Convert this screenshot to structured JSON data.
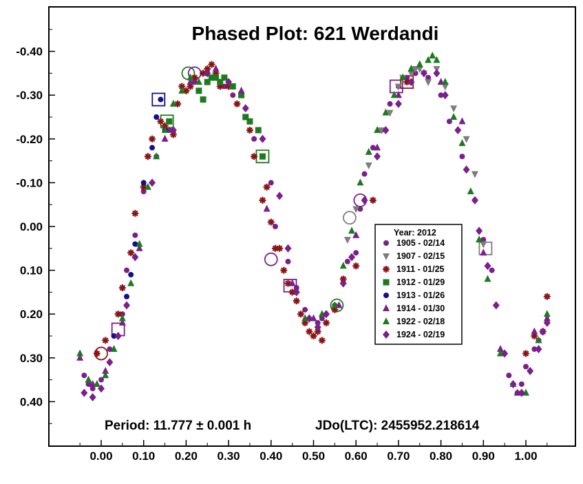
{
  "chart_data": {
    "type": "scatter",
    "title": "Phased Plot: 621 Werdandi",
    "xlabel": "",
    "ylabel": "",
    "xlim": [
      -0.12,
      1.12
    ],
    "ylim": [
      0.5,
      -0.48
    ],
    "y_inverted": true,
    "x_ticks": [
      "0.00",
      "0.10",
      "0.20",
      "0.30",
      "0.40",
      "0.50",
      "0.60",
      "0.70",
      "0.80",
      "0.90",
      "1.00"
    ],
    "y_ticks": [
      "-0.40",
      "-0.30",
      "-0.20",
      "-0.10",
      "0.00",
      "0.10",
      "0.20",
      "0.30",
      "0.40"
    ],
    "grid": false,
    "legend_position": "center-right",
    "legend_title": "Year: 2012",
    "period_text": "Period: 11.777 ± 0.001 h",
    "jdo_text": "JDo(LTC): 2455952.218614",
    "series": [
      {
        "name": "1905 - 02/14",
        "marker": "circle",
        "color": "#7a1f8c",
        "x": [
          -0.04,
          -0.03,
          -0.02,
          0.0,
          0.02,
          0.05,
          0.06,
          0.08,
          0.1,
          0.13,
          0.16,
          0.22,
          0.29,
          0.31,
          0.35,
          0.36,
          0.4,
          0.41,
          0.44,
          0.46,
          0.48,
          0.51,
          0.52,
          0.55,
          0.58,
          0.6,
          0.61,
          0.62,
          0.64,
          0.66,
          0.68,
          0.7,
          0.72,
          0.74,
          0.77,
          0.8,
          0.82,
          0.85,
          0.88,
          0.9,
          0.92,
          0.96,
          0.98,
          0.99,
          1.0,
          1.02,
          1.03
        ],
        "y": [
          0.34,
          0.36,
          0.37,
          0.35,
          0.28,
          0.2,
          0.1,
          0.02,
          -0.08,
          -0.16,
          -0.22,
          -0.33,
          -0.32,
          -0.3,
          -0.24,
          -0.2,
          -0.1,
          0.0,
          0.08,
          0.14,
          0.19,
          0.22,
          0.21,
          0.18,
          0.08,
          0.06,
          -0.04,
          -0.12,
          -0.18,
          -0.22,
          -0.28,
          -0.32,
          -0.34,
          -0.35,
          -0.34,
          -0.3,
          -0.24,
          -0.16,
          -0.06,
          0.03,
          0.1,
          0.34,
          0.38,
          0.36,
          0.32,
          0.28,
          0.26
        ]
      },
      {
        "name": "1907 - 02/15",
        "marker": "triangle-down",
        "color": "#7d7d7d",
        "x": [
          0.58,
          0.6,
          0.63,
          0.66,
          0.68,
          0.7,
          0.71,
          0.73,
          0.74,
          0.75,
          0.76,
          0.77,
          0.79,
          0.81,
          0.83,
          0.86,
          0.88,
          0.9
        ],
        "y": [
          0.03,
          -0.04,
          -0.14,
          -0.22,
          -0.26,
          -0.32,
          -0.34,
          -0.35,
          -0.36,
          -0.36,
          -0.35,
          -0.33,
          -0.36,
          -0.32,
          -0.27,
          -0.2,
          -0.12,
          0.04
        ]
      },
      {
        "name": "1911 - 01/25",
        "marker": "asterisk",
        "color": "#8b1515",
        "x": [
          -0.01,
          0.01,
          0.04,
          0.05,
          0.07,
          0.08,
          0.1,
          0.11,
          0.12,
          0.14,
          0.15,
          0.17,
          0.18,
          0.19,
          0.2,
          0.21,
          0.22,
          0.24,
          0.25,
          0.26,
          0.27,
          0.28,
          0.3,
          0.32,
          0.35,
          0.36,
          0.38,
          0.39,
          0.4,
          0.41,
          0.42,
          0.43,
          0.44,
          0.45,
          0.46,
          0.47,
          0.48,
          0.49,
          0.5,
          0.51,
          0.52,
          0.53,
          0.55,
          0.57,
          0.6,
          0.64,
          0.72,
          1.0,
          1.02,
          1.04,
          1.05
        ],
        "y": [
          0.29,
          0.26,
          0.2,
          0.14,
          0.06,
          -0.03,
          -0.09,
          -0.16,
          -0.2,
          -0.24,
          -0.23,
          -0.21,
          -0.28,
          -0.32,
          -0.31,
          -0.32,
          -0.34,
          -0.35,
          -0.36,
          -0.37,
          -0.35,
          -0.32,
          -0.32,
          -0.28,
          -0.22,
          -0.16,
          -0.06,
          -0.09,
          -0.01,
          0.05,
          0.05,
          0.1,
          0.13,
          0.15,
          0.17,
          0.2,
          0.22,
          0.24,
          0.25,
          0.24,
          0.26,
          0.22,
          0.19,
          0.12,
          0.09,
          -0.06,
          -0.33,
          0.29,
          0.25,
          0.24,
          0.16
        ]
      },
      {
        "name": "1912 - 01/29",
        "marker": "square",
        "color": "#1e7a1e",
        "x": [
          0.16,
          0.23,
          0.24,
          0.25,
          0.26,
          0.27,
          0.28,
          0.29,
          0.31,
          0.33,
          0.34,
          0.35,
          0.37,
          0.38
        ],
        "y": [
          -0.24,
          -0.31,
          -0.29,
          -0.33,
          -0.34,
          -0.34,
          -0.33,
          -0.34,
          -0.32,
          -0.3,
          -0.25,
          -0.24,
          -0.22,
          -0.16
        ]
      },
      {
        "name": "1913 - 01/26",
        "marker": "circle",
        "color": "#121285",
        "x": [
          0.03,
          0.06,
          0.07,
          0.08,
          0.1,
          0.12,
          0.13,
          0.14,
          0.15
        ],
        "y": [
          0.25,
          0.16,
          0.11,
          0.04,
          -0.1,
          -0.18,
          -0.25,
          -0.29,
          -0.22
        ]
      },
      {
        "name": "1914 - 01/30",
        "marker": "triangle-up",
        "color": "#7a1f8c",
        "x": [
          -0.05,
          -0.02,
          0.01,
          0.05,
          0.09,
          0.15,
          0.21,
          0.27,
          0.33,
          0.39,
          0.45,
          0.5,
          0.56,
          0.6,
          0.65,
          0.7,
          0.75,
          0.8,
          0.85,
          0.9,
          0.94,
          0.98,
          1.02,
          1.05
        ],
        "y": [
          0.3,
          0.36,
          0.33,
          0.22,
          0.05,
          -0.2,
          -0.33,
          -0.36,
          -0.31,
          -0.04,
          0.13,
          0.21,
          0.18,
          0.02,
          -0.18,
          -0.3,
          -0.37,
          -0.33,
          -0.24,
          0.06,
          0.28,
          0.38,
          0.24,
          0.21
        ]
      },
      {
        "name": "1922 - 02/18",
        "marker": "triangle-up",
        "color": "#1e7a1e",
        "x": [
          -0.05,
          -0.03,
          -0.01,
          0.01,
          0.03,
          0.05,
          0.07,
          0.09,
          0.11,
          0.13,
          0.15,
          0.17,
          0.19,
          0.21,
          0.23,
          0.25,
          0.27,
          0.48,
          0.52,
          0.55,
          0.57,
          0.59,
          0.61,
          0.63,
          0.65,
          0.67,
          0.69,
          0.71,
          0.73,
          0.75,
          0.77,
          0.78,
          0.79,
          0.81,
          0.83,
          0.85,
          0.87,
          0.89,
          0.91,
          0.94,
          0.97,
          1.0,
          1.03,
          1.05
        ],
        "y": [
          0.29,
          0.35,
          0.36,
          0.34,
          0.28,
          0.21,
          0.13,
          0.04,
          -0.09,
          -0.16,
          -0.22,
          -0.28,
          -0.31,
          -0.34,
          -0.33,
          -0.35,
          -0.34,
          0.21,
          0.2,
          0.18,
          0.09,
          0.01,
          -0.1,
          -0.17,
          -0.22,
          -0.26,
          -0.3,
          -0.34,
          -0.36,
          -0.37,
          -0.38,
          -0.39,
          -0.38,
          -0.33,
          -0.25,
          -0.19,
          -0.08,
          0.03,
          0.12,
          0.29,
          0.36,
          0.38,
          0.26,
          0.2
        ]
      },
      {
        "name": "1924 - 02/19",
        "marker": "diamond",
        "color": "#7a1f8c",
        "x": [
          -0.04,
          -0.02,
          0.0,
          0.02,
          0.04,
          0.06,
          0.08,
          0.12,
          0.17,
          0.25,
          0.3,
          0.34,
          0.38,
          0.42,
          0.44,
          0.46,
          0.49,
          0.51,
          0.53,
          0.57,
          0.59,
          0.62,
          0.65,
          0.67,
          0.7,
          0.73,
          0.76,
          0.79,
          0.81,
          0.84,
          0.86,
          0.88,
          0.89,
          0.91,
          0.93,
          0.95,
          0.97,
          0.99,
          1.01,
          1.03,
          1.04,
          1.05
        ],
        "y": [
          0.38,
          0.39,
          0.37,
          0.31,
          0.25,
          0.18,
          0.07,
          -0.1,
          -0.22,
          -0.35,
          -0.33,
          -0.27,
          -0.2,
          -0.07,
          0.05,
          0.15,
          0.21,
          0.23,
          0.2,
          0.13,
          0.07,
          -0.06,
          -0.16,
          -0.22,
          -0.28,
          -0.33,
          -0.35,
          -0.35,
          -0.3,
          -0.22,
          -0.13,
          -0.06,
          0.01,
          0.09,
          0.18,
          0.29,
          0.36,
          0.38,
          0.33,
          0.28,
          0.24,
          0.22
        ]
      }
    ],
    "highlighted_points": [
      {
        "series": "1905 - 02/14",
        "x": 0.0,
        "y": 0.29,
        "ring": "circle",
        "color": "#8b1515"
      },
      {
        "series": "1905 - 02/14",
        "x": 0.04,
        "y": 0.235,
        "ring": "square",
        "color": "#7a1f8c"
      },
      {
        "series": "1913 - 01/26",
        "x": 0.135,
        "y": -0.29,
        "ring": "square",
        "color": "#121285"
      },
      {
        "series": "1912 - 01/29",
        "x": 0.155,
        "y": -0.24,
        "ring": "square",
        "color": "#1e7a1e"
      },
      {
        "series": "1922 - 02/18",
        "x": 0.205,
        "y": -0.35,
        "ring": "circle",
        "color": "#1e7a1e"
      },
      {
        "series": "1914 - 01/30",
        "x": 0.22,
        "y": -0.35,
        "ring": "circle",
        "color": "#7a1f8c"
      },
      {
        "series": "1912 - 01/29",
        "x": 0.38,
        "y": -0.16,
        "ring": "square",
        "color": "#1e7a1e"
      },
      {
        "series": "1905 - 02/14",
        "x": 0.4,
        "y": 0.075,
        "ring": "circle",
        "color": "#7a1f8c"
      },
      {
        "series": "1914 - 01/30",
        "x": 0.445,
        "y": 0.135,
        "ring": "square",
        "color": "#7a1f8c"
      },
      {
        "series": "1922 - 02/18",
        "x": 0.555,
        "y": 0.18,
        "ring": "circle",
        "color": "#1e7a1e"
      },
      {
        "series": "1907 - 02/15",
        "x": 0.585,
        "y": -0.02,
        "ring": "circle",
        "color": "#7d7d7d"
      },
      {
        "series": "1905 - 02/14",
        "x": 0.61,
        "y": -0.06,
        "ring": "circle",
        "color": "#7a1f8c"
      },
      {
        "series": "1924 - 02/19",
        "x": 0.695,
        "y": -0.32,
        "ring": "square",
        "color": "#7a1f8c"
      },
      {
        "series": "1911 - 01/25",
        "x": 0.72,
        "y": -0.33,
        "ring": "square",
        "color": "#8b1515"
      },
      {
        "series": "1907 - 02/15",
        "x": 0.905,
        "y": 0.05,
        "ring": "square",
        "color": "#7d7d7d"
      }
    ]
  }
}
